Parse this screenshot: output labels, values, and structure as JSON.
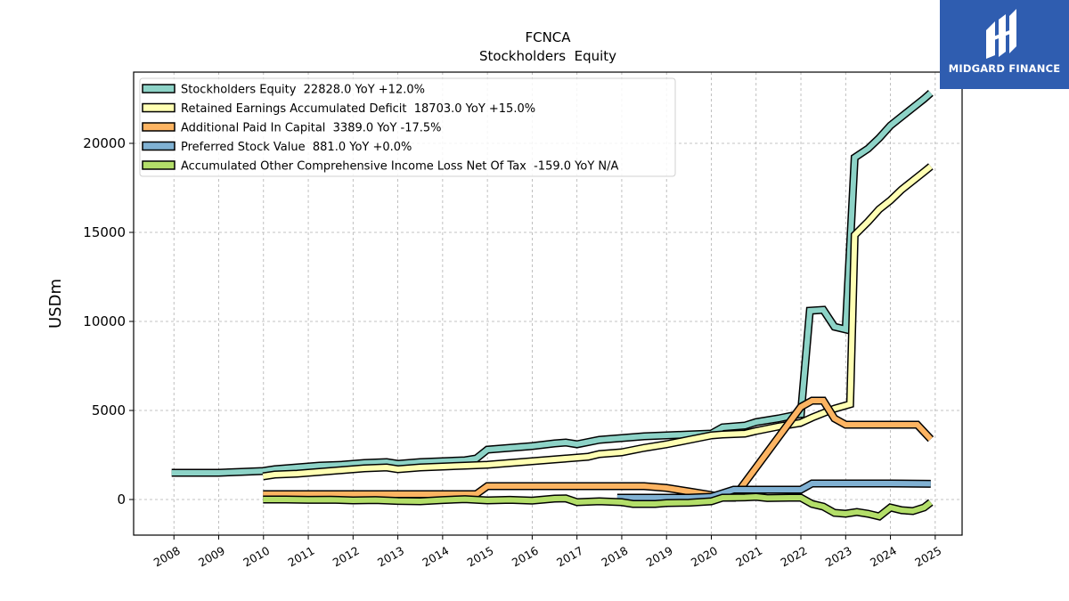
{
  "brand": {
    "name": "MIDGARD FINANCE",
    "bg_color": "#2f5db0"
  },
  "chart_data": {
    "type": "line",
    "title": "FCNCA",
    "subtitle": "Stockholders  Equity",
    "xlabel": "",
    "ylabel": "USDm",
    "xlim": [
      2007.1,
      2025.6
    ],
    "ylim": [
      -2000,
      24000
    ],
    "x_ticks": [
      2008,
      2009,
      2010,
      2011,
      2012,
      2013,
      2014,
      2015,
      2016,
      2017,
      2018,
      2019,
      2020,
      2021,
      2022,
      2023,
      2024,
      2025
    ],
    "y_ticks": [
      0,
      5000,
      10000,
      15000,
      20000
    ],
    "grid": true,
    "legend_position": "top-left",
    "series": [
      {
        "name": "Stockholders Equity  22828.0 YoY +12.0%",
        "color": "#8dd3c7",
        "points": [
          [
            2007.95,
            1500
          ],
          [
            2008.5,
            1500
          ],
          [
            2009.0,
            1500
          ],
          [
            2009.5,
            1550
          ],
          [
            2009.99,
            1600
          ],
          [
            2010.25,
            1700
          ],
          [
            2010.75,
            1800
          ],
          [
            2011.25,
            1900
          ],
          [
            2011.75,
            1950
          ],
          [
            2012.25,
            2050
          ],
          [
            2012.75,
            2100
          ],
          [
            2013.0,
            2000
          ],
          [
            2013.5,
            2100
          ],
          [
            2014.0,
            2150
          ],
          [
            2014.5,
            2200
          ],
          [
            2014.75,
            2300
          ],
          [
            2015.0,
            2800
          ],
          [
            2015.5,
            2900
          ],
          [
            2016.0,
            3000
          ],
          [
            2016.5,
            3150
          ],
          [
            2016.75,
            3200
          ],
          [
            2017.0,
            3100
          ],
          [
            2017.5,
            3350
          ],
          [
            2018.0,
            3450
          ],
          [
            2018.5,
            3550
          ],
          [
            2019.0,
            3600
          ],
          [
            2019.5,
            3650
          ],
          [
            2020.0,
            3700
          ],
          [
            2020.25,
            4050
          ],
          [
            2020.75,
            4150
          ],
          [
            2021.0,
            4350
          ],
          [
            2021.5,
            4550
          ],
          [
            2021.99,
            4800
          ],
          [
            2022.0,
            4800
          ],
          [
            2022.2,
            10600
          ],
          [
            2022.5,
            10650
          ],
          [
            2022.75,
            9700
          ],
          [
            2023.0,
            9550
          ],
          [
            2023.2,
            19200
          ],
          [
            2023.5,
            19700
          ],
          [
            2023.75,
            20300
          ],
          [
            2024.0,
            21000
          ],
          [
            2024.25,
            21500
          ],
          [
            2024.5,
            22000
          ],
          [
            2024.75,
            22500
          ],
          [
            2024.9,
            22828
          ]
        ]
      },
      {
        "name": "Retained Earnings Accumulated Deficit  18703.0 YoY +15.0%",
        "color": "#ffffb3",
        "points": [
          [
            2009.99,
            1300
          ],
          [
            2010.25,
            1400
          ],
          [
            2010.75,
            1450
          ],
          [
            2011.25,
            1550
          ],
          [
            2011.75,
            1650
          ],
          [
            2012.25,
            1750
          ],
          [
            2012.75,
            1800
          ],
          [
            2013.0,
            1700
          ],
          [
            2013.5,
            1800
          ],
          [
            2014.0,
            1850
          ],
          [
            2014.5,
            1900
          ],
          [
            2015.0,
            1950
          ],
          [
            2015.5,
            2050
          ],
          [
            2016.0,
            2150
          ],
          [
            2016.5,
            2250
          ],
          [
            2017.0,
            2350
          ],
          [
            2017.25,
            2400
          ],
          [
            2017.5,
            2550
          ],
          [
            2018.0,
            2650
          ],
          [
            2018.5,
            2900
          ],
          [
            2019.0,
            3100
          ],
          [
            2019.5,
            3350
          ],
          [
            2020.0,
            3600
          ],
          [
            2020.25,
            3650
          ],
          [
            2020.75,
            3700
          ],
          [
            2021.0,
            3850
          ],
          [
            2021.5,
            4100
          ],
          [
            2021.99,
            4300
          ],
          [
            2022.25,
            4600
          ],
          [
            2022.75,
            5100
          ],
          [
            2023.1,
            5350
          ],
          [
            2023.2,
            14850
          ],
          [
            2023.5,
            15600
          ],
          [
            2023.75,
            16300
          ],
          [
            2024.0,
            16800
          ],
          [
            2024.25,
            17400
          ],
          [
            2024.5,
            17900
          ],
          [
            2024.75,
            18400
          ],
          [
            2024.9,
            18703
          ]
        ]
      },
      {
        "name": "Additional Paid In Capital  3389.0 YoY -17.5%",
        "color": "#fdb462",
        "points": [
          [
            2009.99,
            300
          ],
          [
            2010.5,
            300
          ],
          [
            2011.0,
            300
          ],
          [
            2012.0,
            300
          ],
          [
            2013.0,
            300
          ],
          [
            2014.0,
            300
          ],
          [
            2014.75,
            300
          ],
          [
            2015.0,
            750
          ],
          [
            2016.0,
            750
          ],
          [
            2017.0,
            750
          ],
          [
            2018.0,
            750
          ],
          [
            2018.5,
            750
          ],
          [
            2019.0,
            650
          ],
          [
            2019.5,
            450
          ],
          [
            2020.0,
            250
          ],
          [
            2020.25,
            100
          ],
          [
            2020.5,
            100
          ],
          [
            2021.0,
            1800
          ],
          [
            2021.5,
            3500
          ],
          [
            2022.0,
            5200
          ],
          [
            2022.25,
            5550
          ],
          [
            2022.5,
            5550
          ],
          [
            2022.75,
            4550
          ],
          [
            2023.0,
            4200
          ],
          [
            2023.5,
            4200
          ],
          [
            2024.0,
            4200
          ],
          [
            2024.6,
            4200
          ],
          [
            2024.9,
            3389
          ]
        ]
      },
      {
        "name": "Preferred Stock Value  881.0 YoY +0.0%",
        "color": "#80b1d3",
        "points": [
          [
            2017.9,
            100
          ],
          [
            2018.5,
            100
          ],
          [
            2019.0,
            100
          ],
          [
            2019.5,
            100
          ],
          [
            2020.0,
            150
          ],
          [
            2020.5,
            550
          ],
          [
            2021.0,
            550
          ],
          [
            2021.5,
            550
          ],
          [
            2022.0,
            550
          ],
          [
            2022.25,
            900
          ],
          [
            2023.0,
            900
          ],
          [
            2024.0,
            900
          ],
          [
            2024.9,
            881
          ]
        ]
      },
      {
        "name": "Accumulated Other Comprehensive Income Loss Net Of Tax  -159.0 YoY N/A",
        "color": "#b3de69",
        "points": [
          [
            2009.99,
            0
          ],
          [
            2010.5,
            0
          ],
          [
            2011.0,
            -20
          ],
          [
            2011.5,
            -10
          ],
          [
            2012.0,
            -50
          ],
          [
            2012.5,
            -30
          ],
          [
            2013.0,
            -80
          ],
          [
            2013.5,
            -100
          ],
          [
            2014.0,
            -30
          ],
          [
            2014.5,
            20
          ],
          [
            2015.0,
            -50
          ],
          [
            2015.5,
            -20
          ],
          [
            2016.0,
            -60
          ],
          [
            2016.5,
            50
          ],
          [
            2016.75,
            60
          ],
          [
            2017.0,
            -150
          ],
          [
            2017.5,
            -100
          ],
          [
            2018.0,
            -150
          ],
          [
            2018.25,
            -250
          ],
          [
            2018.75,
            -250
          ],
          [
            2019.0,
            -200
          ],
          [
            2019.5,
            -180
          ],
          [
            2020.0,
            -100
          ],
          [
            2020.25,
            100
          ],
          [
            2020.75,
            120
          ],
          [
            2021.0,
            150
          ],
          [
            2021.25,
            80
          ],
          [
            2021.75,
            100
          ],
          [
            2022.0,
            100
          ],
          [
            2022.25,
            -250
          ],
          [
            2022.5,
            -400
          ],
          [
            2022.75,
            -750
          ],
          [
            2023.0,
            -800
          ],
          [
            2023.25,
            -700
          ],
          [
            2023.5,
            -800
          ],
          [
            2023.75,
            -950
          ],
          [
            2024.0,
            -450
          ],
          [
            2024.25,
            -600
          ],
          [
            2024.5,
            -650
          ],
          [
            2024.75,
            -450
          ],
          [
            2024.9,
            -159
          ]
        ]
      }
    ]
  }
}
